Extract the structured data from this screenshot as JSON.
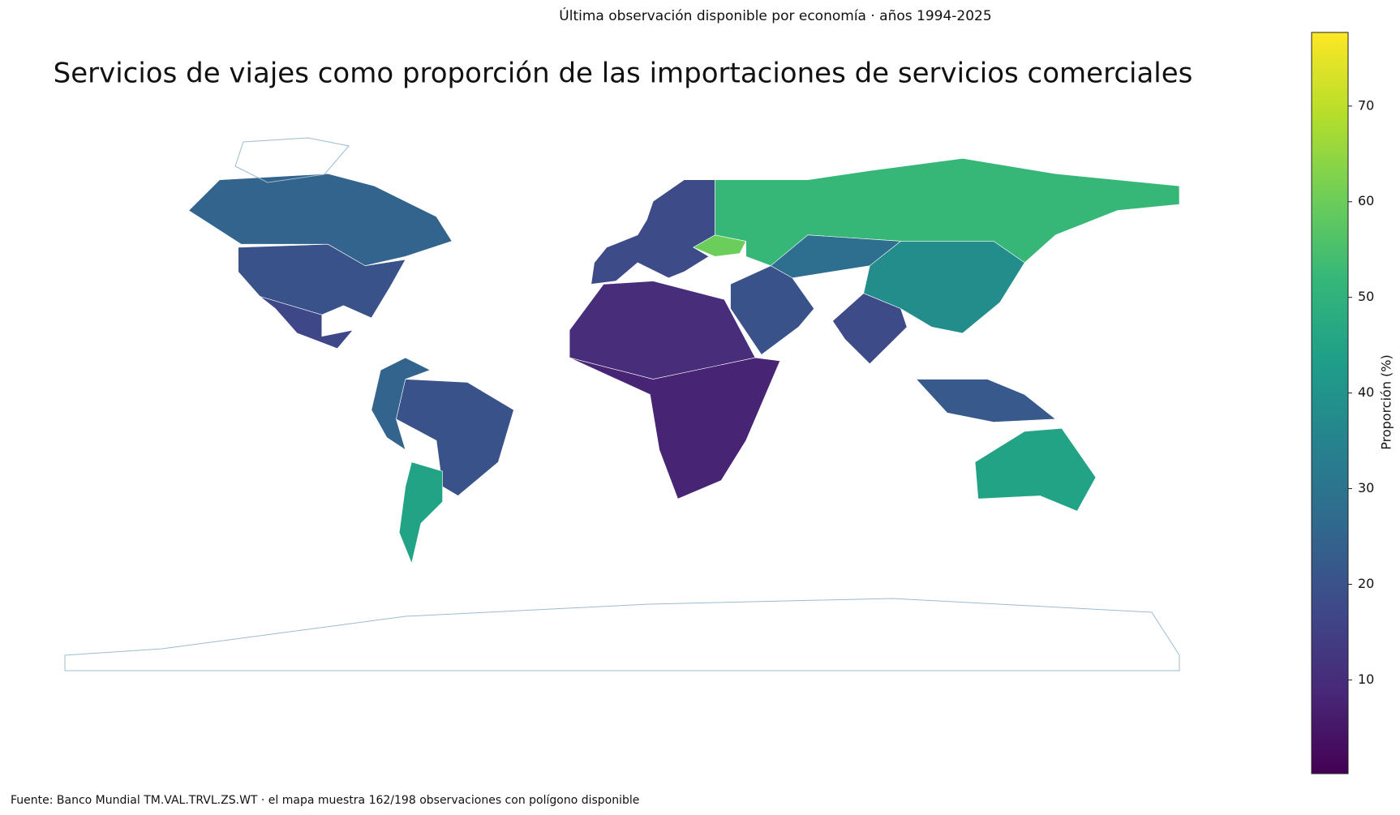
{
  "chart_data": {
    "type": "choropleth",
    "title": "Servicios de viajes como proporción de las importaciones de servicios comerciales",
    "subtitle": "Última observación disponible por economía · años 1994-2025",
    "source": "Fuente: Banco Mundial TM.VAL.TRVL.ZS.WT · el mapa muestra 162/198 observaciones con polígono disponible",
    "colorbar_label": "Proporción (%)",
    "colorscale": "viridis",
    "clim": [
      0.2,
      77.7
    ],
    "cticks": [
      10,
      20,
      30,
      40,
      50,
      60,
      70
    ],
    "values": [
      25,
      20,
      17,
      20,
      45,
      25,
      18,
      60,
      52,
      28,
      38,
      18,
      20,
      10,
      8,
      45,
      22
    ]
  }
}
